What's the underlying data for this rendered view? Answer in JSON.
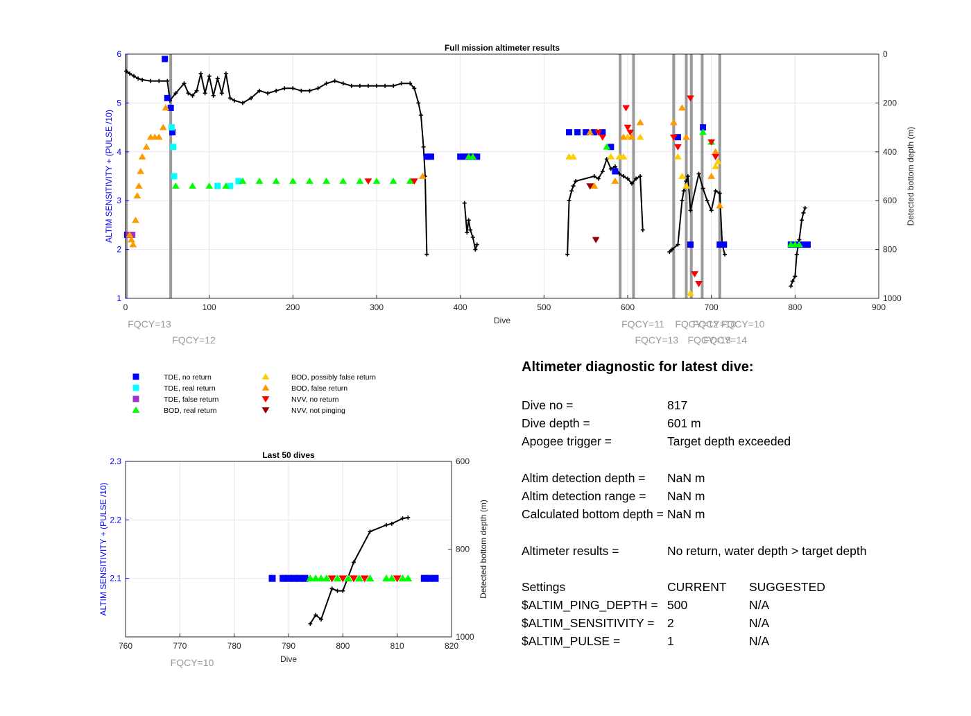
{
  "colors": {
    "tde_no_return": "#0000ff",
    "tde_real_return": "#00ffff",
    "tde_false_return": "#9933cc",
    "bod_real_return": "#00ff00",
    "bod_possibly_false": "#ffcc00",
    "bod_false_return": "#ff9900",
    "nvv_no_return": "#ff0000",
    "nvv_not_pinging": "#990000",
    "depth_trace": "#000000",
    "fqcy_lines": "#999999",
    "left_axis": "#0000ff"
  },
  "legend": [
    {
      "key": "tde_no_return",
      "label": "TDE, no return",
      "marker": "square"
    },
    {
      "key": "tde_real_return",
      "label": "TDE, real return",
      "marker": "square"
    },
    {
      "key": "tde_false_return",
      "label": "TDE, false return",
      "marker": "square"
    },
    {
      "key": "bod_real_return",
      "label": "BOD, real return",
      "marker": "triangle-up"
    },
    {
      "key": "bod_possibly_false",
      "label": "BOD, possibly false return",
      "marker": "triangle-up"
    },
    {
      "key": "bod_false_return",
      "label": "BOD, false return",
      "marker": "triangle-up"
    },
    {
      "key": "nvv_no_return",
      "label": "NVV, no return",
      "marker": "triangle-down"
    },
    {
      "key": "nvv_not_pinging",
      "label": "NVV, not pinging",
      "marker": "triangle-down"
    }
  ],
  "chart_data": [
    {
      "type": "scatter",
      "title": "Full mission altimeter results",
      "xlabel": "Dive",
      "ylabel": "ALTIM SENSITIVITY + (PULSE /10)",
      "y2label": "Detected bottom depth (m)",
      "xlim": [
        0,
        900
      ],
      "ylim": [
        1,
        6
      ],
      "y2lim": [
        1000,
        0
      ],
      "xticks": [
        "0",
        "100",
        "200",
        "300",
        "400",
        "500",
        "600",
        "700",
        "800",
        "900"
      ],
      "yticks": [
        "1",
        "2",
        "3",
        "4",
        "5",
        "6"
      ],
      "y2ticks": [
        "0",
        "200",
        "400",
        "600",
        "800",
        "1000"
      ],
      "grid": true,
      "fqcy_changes": [
        {
          "dive": 1,
          "label": "FQCY=13",
          "row": 1
        },
        {
          "dive": 54,
          "label": "FQCY=12",
          "row": 2
        },
        {
          "dive": 591,
          "label": "FQCY=11",
          "row": 1
        },
        {
          "dive": 607,
          "label": "FQCY=13",
          "row": 2
        },
        {
          "dive": 655,
          "label": "FQCY=12",
          "row": 1
        },
        {
          "dive": 670,
          "label": "FQCY=13",
          "row": 2
        },
        {
          "dive": 676,
          "label": "FQCY=10",
          "row": 1
        },
        {
          "dive": 689,
          "label": "FQCY=14",
          "row": 2
        },
        {
          "dive": 710,
          "label": "FQCY=10",
          "row": 1
        }
      ],
      "series": [
        {
          "key": "tde_no_return",
          "marker": "square",
          "x": [
            2,
            5,
            47,
            50,
            54,
            56,
            360,
            365,
            400,
            405,
            410,
            415,
            420,
            530,
            540,
            550,
            560,
            570,
            580,
            585,
            660,
            675,
            690,
            710,
            715,
            795,
            800,
            805,
            810,
            815
          ],
          "y": [
            2.3,
            2.3,
            5.9,
            5.1,
            4.9,
            4.4,
            3.9,
            3.9,
            3.9,
            3.9,
            3.9,
            3.9,
            3.9,
            4.4,
            4.4,
            4.4,
            4.4,
            4.4,
            4.1,
            3.6,
            4.3,
            2.1,
            4.5,
            2.1,
            2.1,
            2.1,
            2.1,
            2.1,
            2.1,
            2.1
          ]
        },
        {
          "key": "tde_real_return",
          "marker": "square",
          "x": [
            55,
            57,
            58,
            110,
            125,
            135
          ],
          "y": [
            4.5,
            4.1,
            3.5,
            3.3,
            3.3,
            3.4
          ]
        },
        {
          "key": "tde_false_return",
          "marker": "square",
          "x": [
            4,
            8
          ],
          "y": [
            2.3,
            2.3
          ]
        },
        {
          "key": "bod_real_return",
          "marker": "triangle-up",
          "x": [
            60,
            80,
            100,
            120,
            140,
            160,
            180,
            200,
            220,
            240,
            260,
            280,
            300,
            320,
            340,
            410,
            415,
            575,
            690,
            700,
            795,
            800,
            805
          ],
          "y": [
            3.3,
            3.3,
            3.3,
            3.3,
            3.4,
            3.4,
            3.4,
            3.4,
            3.4,
            3.4,
            3.4,
            3.4,
            3.4,
            3.4,
            3.4,
            3.9,
            3.9,
            4.1,
            4.4,
            4.2,
            2.1,
            2.1,
            2.1
          ]
        },
        {
          "key": "bod_possibly_false",
          "marker": "triangle-up",
          "x": [
            530,
            535,
            580,
            590,
            595,
            600,
            615,
            660,
            665,
            670,
            675,
            705,
            708
          ],
          "y": [
            3.9,
            3.9,
            3.9,
            3.9,
            3.9,
            4.3,
            4.3,
            3.9,
            3.5,
            3.3,
            1.1,
            3.7,
            3.8
          ]
        },
        {
          "key": "bod_false_return",
          "marker": "triangle-up",
          "x": [
            5,
            7,
            9,
            12,
            14,
            16,
            18,
            20,
            25,
            30,
            35,
            40,
            45,
            48,
            355,
            555,
            560,
            585,
            595,
            605,
            615,
            655,
            665,
            670,
            700,
            705,
            710
          ],
          "y": [
            2.3,
            2.2,
            2.1,
            2.6,
            3.1,
            3.3,
            3.6,
            3.9,
            4.1,
            4.3,
            4.3,
            4.3,
            4.5,
            4.9,
            3.5,
            4.4,
            3.3,
            3.4,
            4.3,
            4.3,
            4.6,
            4.6,
            4.9,
            4.3,
            3.5,
            4.0,
            2.9
          ]
        },
        {
          "key": "nvv_no_return",
          "marker": "triangle-down",
          "x": [
            290,
            345,
            565,
            570,
            598,
            600,
            603,
            655,
            660,
            675,
            680,
            685,
            700,
            705
          ],
          "y": [
            3.4,
            3.4,
            4.4,
            4.3,
            4.9,
            4.5,
            4.4,
            4.3,
            4.1,
            5.1,
            1.5,
            1.3,
            4.2,
            3.9
          ]
        },
        {
          "key": "nvv_not_pinging",
          "marker": "triangle-down",
          "x": [
            555,
            562
          ],
          "y": [
            3.3,
            2.2
          ]
        },
        {
          "key": "depth_trace",
          "marker": "plus-line",
          "axis": "right",
          "x": [
            1,
            5,
            10,
            15,
            20,
            30,
            40,
            50,
            53,
            60,
            70,
            75,
            80,
            85,
            90,
            95,
            100,
            105,
            110,
            115,
            120,
            125,
            130,
            140,
            150,
            160,
            170,
            180,
            190,
            200,
            210,
            220,
            230,
            240,
            250,
            260,
            270,
            280,
            290,
            300,
            310,
            320,
            330,
            340,
            345,
            350,
            353,
            356,
            358,
            360,
            405,
            408,
            410,
            412,
            415,
            418,
            420,
            528,
            530,
            533,
            535,
            538,
            560,
            565,
            570,
            575,
            580,
            585,
            590,
            595,
            600,
            605,
            610,
            615,
            618,
            650,
            653,
            660,
            665,
            667,
            670,
            672,
            675,
            685,
            690,
            695,
            700,
            705,
            710,
            713,
            716,
            795,
            797,
            800,
            802,
            805,
            808,
            810,
            812
          ],
          "y": [
            70,
            80,
            90,
            100,
            105,
            110,
            110,
            110,
            190,
            160,
            120,
            160,
            170,
            150,
            80,
            160,
            90,
            170,
            100,
            160,
            80,
            180,
            190,
            200,
            180,
            150,
            160,
            150,
            140,
            140,
            150,
            150,
            140,
            120,
            110,
            120,
            130,
            130,
            130,
            130,
            130,
            130,
            120,
            120,
            140,
            200,
            250,
            380,
            500,
            820,
            610,
            730,
            680,
            720,
            750,
            800,
            780,
            820,
            600,
            560,
            540,
            520,
            500,
            510,
            480,
            430,
            470,
            460,
            490,
            500,
            510,
            530,
            510,
            500,
            720,
            810,
            800,
            780,
            600,
            560,
            520,
            500,
            640,
            490,
            550,
            600,
            640,
            560,
            570,
            780,
            820,
            950,
            930,
            910,
            820,
            760,
            680,
            650,
            630
          ]
        }
      ]
    },
    {
      "type": "scatter",
      "title": "Last 50 dives",
      "xlabel": "Dive",
      "ylabel": "ALTIM SENSITIVITY + (PULSE /10)",
      "y2label": "Detected bottom depth (m)",
      "xlim": [
        760,
        820
      ],
      "ylim": [
        2.0,
        2.3
      ],
      "y2lim": [
        1000,
        600
      ],
      "xticks": [
        "760",
        "770",
        "780",
        "790",
        "800",
        "810",
        "820"
      ],
      "yticks": [
        "2.1",
        "2.2",
        "2.3"
      ],
      "y2ticks": [
        "600",
        "800",
        "1000"
      ],
      "grid": true,
      "fqcy_changes": [
        {
          "dive": 768,
          "label": "FQCY=10",
          "row": 1
        }
      ],
      "series": [
        {
          "key": "tde_no_return",
          "marker": "square",
          "x": [
            787,
            789,
            790,
            791,
            792,
            793,
            815,
            816,
            817
          ],
          "y": [
            2.1,
            2.1,
            2.1,
            2.1,
            2.1,
            2.1,
            2.1,
            2.1,
            2.1
          ]
        },
        {
          "key": "bod_real_return",
          "marker": "triangle-up",
          "x": [
            794,
            795,
            796,
            797,
            799,
            801,
            803,
            805,
            808,
            809,
            811,
            812
          ],
          "y": [
            2.1,
            2.1,
            2.1,
            2.1,
            2.1,
            2.1,
            2.1,
            2.1,
            2.1,
            2.1,
            2.1,
            2.1
          ]
        },
        {
          "key": "nvv_no_return",
          "marker": "triangle-down",
          "x": [
            798,
            800,
            802,
            804,
            810
          ],
          "y": [
            2.1,
            2.1,
            2.1,
            2.1,
            2.1
          ]
        },
        {
          "key": "depth_trace",
          "marker": "plus-line",
          "axis": "right",
          "x": [
            794,
            795,
            796,
            798,
            799,
            800,
            802,
            805,
            808,
            809,
            811,
            812
          ],
          "y": [
            970,
            950,
            960,
            890,
            895,
            895,
            830,
            760,
            745,
            742,
            730,
            728
          ]
        }
      ]
    }
  ],
  "diagnostic": {
    "title": "Altimeter diagnostic for latest dive:",
    "dive_no_label": "Dive no =",
    "dive_no_value": "817",
    "dive_depth_label": "Dive depth =",
    "dive_depth_value": "601 m",
    "apogee_label": "Apogee trigger =",
    "apogee_value": "Target depth exceeded",
    "altim_det_depth_label": "Altim detection depth =",
    "altim_det_depth_value": "NaN m",
    "altim_det_range_label": "Altim detection range =",
    "altim_det_range_value": "NaN m",
    "calc_bottom_label": "Calculated bottom depth =",
    "calc_bottom_value": "NaN m",
    "results_label": "Altimeter results =",
    "results_value": "No return, water depth > target depth",
    "settings_label": "Settings",
    "current_label": "CURRENT",
    "suggested_label": "SUGGESTED",
    "ping_depth_label": "$ALTIM_PING_DEPTH =",
    "ping_depth_current": "500",
    "ping_depth_suggested": "N/A",
    "sensitivity_label": "$ALTIM_SENSITIVITY =",
    "sensitivity_current": "2",
    "sensitivity_suggested": "N/A",
    "pulse_label": "$ALTIM_PULSE =",
    "pulse_current": "1",
    "pulse_suggested": "N/A"
  }
}
